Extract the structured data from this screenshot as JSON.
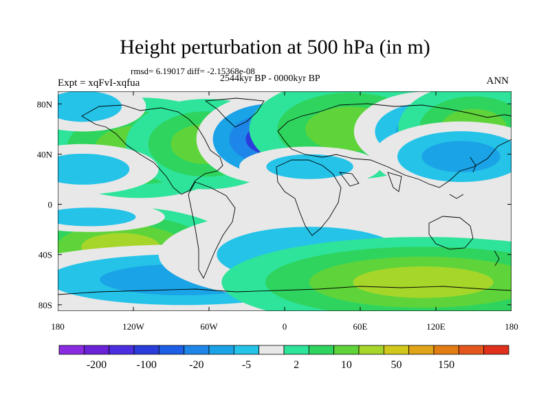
{
  "figure": {
    "title": "Height perturbation at 500 hPa (in m)",
    "stats": "rmsd= 6.19017 diff= -2.15368e-08",
    "experiment": "Expt = xqFvI-xqfua",
    "period": "2544kyr BP - 0000kyr BP",
    "season": "ANN"
  },
  "axes": {
    "x_ticks": [
      "180",
      "120W",
      "60W",
      "0",
      "60E",
      "120E",
      "180"
    ],
    "x_values": [
      -180,
      -120,
      -60,
      0,
      60,
      120,
      180
    ],
    "y_ticks": [
      "80N",
      "40N",
      "0",
      "40S",
      "80S"
    ],
    "y_values": [
      80,
      40,
      0,
      -40,
      -80
    ],
    "lon_range": [
      -180,
      180
    ],
    "lat_range": [
      -85,
      90
    ]
  },
  "colorbar": {
    "colors": [
      "#8a2be2",
      "#6a22d8",
      "#4b2ee0",
      "#2a3ddb",
      "#1d5fe6",
      "#1e86e8",
      "#1aa3e6",
      "#25c3e8",
      "#e8e8e8",
      "#2ee39a",
      "#2fd45e",
      "#5ed43a",
      "#a6d62a",
      "#d2c81b",
      "#e0a419",
      "#e27d13",
      "#e4561d",
      "#e0301b"
    ],
    "labels": [
      "-200",
      "-100",
      "-20",
      "-5",
      "2",
      "10",
      "50",
      "150"
    ],
    "label_positions": [
      1,
      3,
      5,
      7,
      9,
      11,
      13,
      15
    ]
  },
  "map_data": {
    "field": "500 hPa height perturbation",
    "blobs": [
      {
        "lon": -115,
        "lat": 45,
        "rx": 40,
        "ry": 20,
        "levels": [
          9,
          10,
          11
        ]
      },
      {
        "lon": -62,
        "lat": 48,
        "rx": 32,
        "ry": 18,
        "levels": [
          9,
          10,
          11
        ]
      },
      {
        "lon": -10,
        "lat": 52,
        "rx": 30,
        "ry": 18,
        "levels": [
          8,
          6,
          5,
          3
        ]
      },
      {
        "lon": 52,
        "lat": 60,
        "rx": 40,
        "ry": 20,
        "levels": [
          9,
          10,
          11
        ]
      },
      {
        "lon": 20,
        "lat": 30,
        "rx": 28,
        "ry": 8,
        "levels": [
          8,
          7
        ]
      },
      {
        "lon": 115,
        "lat": 58,
        "rx": 30,
        "ry": 16,
        "levels": [
          8,
          7,
          6
        ]
      },
      {
        "lon": 150,
        "lat": 60,
        "rx": 30,
        "ry": 18,
        "levels": [
          9,
          10,
          11
        ]
      },
      {
        "lon": 140,
        "lat": 38,
        "rx": 35,
        "ry": 14,
        "levels": [
          8,
          7,
          6
        ]
      },
      {
        "lon": -160,
        "lat": 78,
        "rx": 25,
        "ry": 10,
        "levels": [
          8,
          7
        ]
      },
      {
        "lon": -160,
        "lat": 28,
        "rx": 30,
        "ry": 10,
        "levels": [
          8,
          7
        ]
      },
      {
        "lon": -130,
        "lat": -34,
        "rx": 45,
        "ry": 16,
        "levels": [
          9,
          10,
          11,
          12
        ]
      },
      {
        "lon": -40,
        "lat": -35,
        "rx": 22,
        "ry": 8,
        "levels": [
          9,
          10
        ]
      },
      {
        "lon": -80,
        "lat": -60,
        "rx": 75,
        "ry": 14,
        "levels": [
          8,
          7,
          6
        ]
      },
      {
        "lon": 20,
        "lat": -40,
        "rx": 60,
        "ry": 18,
        "levels": [
          8,
          7
        ]
      },
      {
        "lon": 110,
        "lat": -62,
        "rx": 80,
        "ry": 18,
        "levels": [
          9,
          10,
          11,
          12
        ]
      },
      {
        "lon": -155,
        "lat": -10,
        "rx": 30,
        "ry": 6,
        "levels": [
          8,
          7
        ]
      }
    ]
  }
}
